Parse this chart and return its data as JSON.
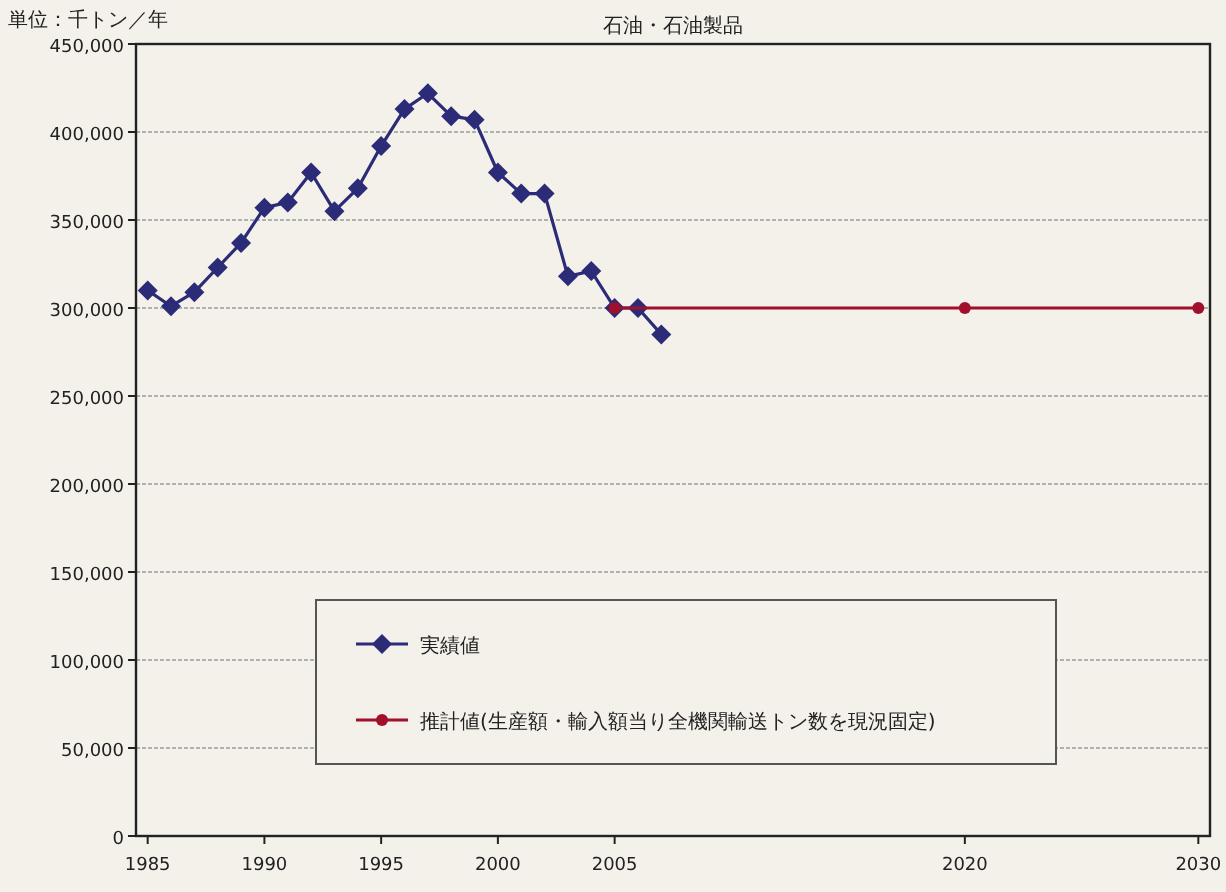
{
  "chart_data": {
    "type": "line",
    "title": "石油・石油製品",
    "ylabel": "単位：千トン／年",
    "xlim": [
      1984.5,
      2030.5
    ],
    "xticks": [
      1985,
      1990,
      1995,
      2000,
      2005,
      2020,
      2030
    ],
    "ylim": [
      0,
      450000
    ],
    "yticks": [
      {
        "value": 0,
        "label": "0"
      },
      {
        "value": 50000,
        "label": "50,000"
      },
      {
        "value": 100000,
        "label": "100,000"
      },
      {
        "value": 150000,
        "label": "150,000"
      },
      {
        "value": 200000,
        "label": "200,000"
      },
      {
        "value": 250000,
        "label": "250,000"
      },
      {
        "value": 300000,
        "label": "300,000"
      },
      {
        "value": 350000,
        "label": "350,000"
      },
      {
        "value": 400000,
        "label": "400,000"
      },
      {
        "value": 450000,
        "label": "450,000"
      }
    ],
    "grid": "y",
    "legend": "bottom",
    "series": [
      {
        "name": "実績値",
        "color": "#2b2b78",
        "marker": "diamond",
        "x": [
          1985,
          1986,
          1987,
          1988,
          1989,
          1990,
          1991,
          1992,
          1993,
          1994,
          1995,
          1996,
          1997,
          1998,
          1999,
          2000,
          2001,
          2002,
          2003,
          2004,
          2005,
          2006,
          2007
        ],
        "values": [
          310000,
          301000,
          309000,
          323000,
          337000,
          357000,
          360000,
          377000,
          355000,
          368000,
          392000,
          413000,
          422000,
          409000,
          407000,
          377000,
          365000,
          365000,
          318000,
          321000,
          300000,
          300000,
          285000
        ]
      },
      {
        "name": "推計値(生産額・輸入額当り全機関輸送トン数を現況固定)",
        "color": "#a0102c",
        "marker": "circle",
        "x": [
          2005,
          2020,
          2030
        ],
        "values": [
          300000,
          300000,
          300000
        ]
      }
    ]
  }
}
